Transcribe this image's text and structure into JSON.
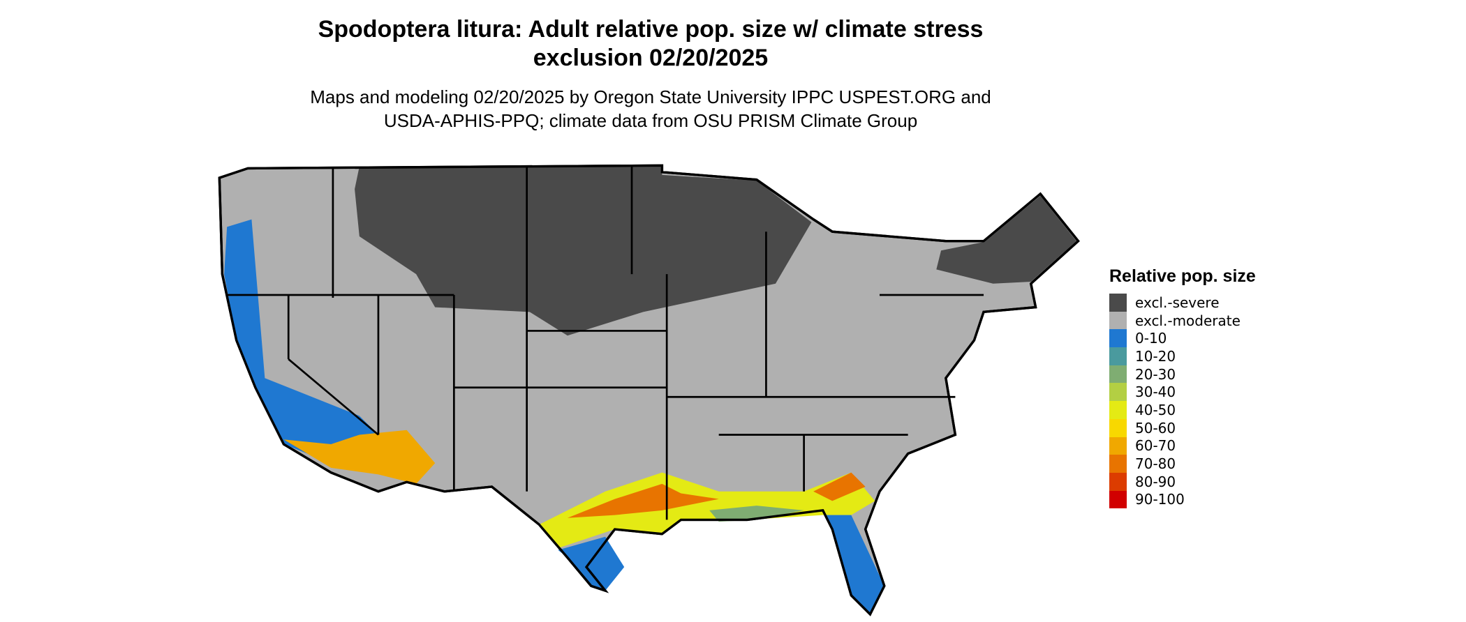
{
  "title": "Spodoptera litura: Adult relative pop. size w/ climate stress exclusion 02/20/2025",
  "subtitle": "Maps and modeling 02/20/2025 by Oregon State University IPPC USPEST.ORG and USDA-APHIS-PPQ; climate data from OSU PRISM Climate Group",
  "legend": {
    "title": "Relative pop. size",
    "items": [
      {
        "label": "excl.-severe",
        "color": "#4a4a4a"
      },
      {
        "label": "excl.-moderate",
        "color": "#b0b0b0"
      },
      {
        "label": "0-10",
        "color": "#1f78d1"
      },
      {
        "label": "10-20",
        "color": "#4a9a9e"
      },
      {
        "label": "20-30",
        "color": "#7fad72"
      },
      {
        "label": "30-40",
        "color": "#b3cf43"
      },
      {
        "label": "40-50",
        "color": "#e4ea14"
      },
      {
        "label": "50-60",
        "color": "#f8d800"
      },
      {
        "label": "60-70",
        "color": "#f0a800"
      },
      {
        "label": "70-80",
        "color": "#e87400"
      },
      {
        "label": "80-90",
        "color": "#dc3c00"
      },
      {
        "label": "90-100",
        "color": "#d10000"
      }
    ]
  }
}
